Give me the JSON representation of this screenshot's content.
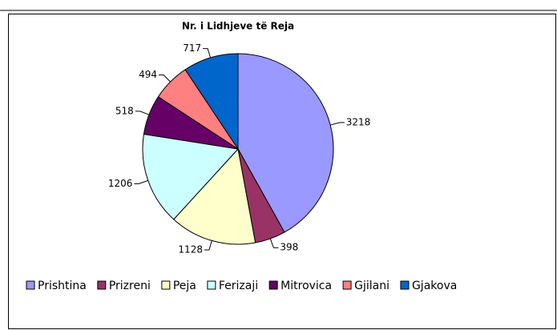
{
  "chart_data": {
    "type": "pie",
    "title": "Nr. i Lidhjeve të Reja",
    "categories": [
      "Prishtina",
      "Prizreni",
      "Peja",
      "Ferizaji",
      "Mitrovica",
      "Gjilani",
      "Gjakova"
    ],
    "values": [
      3218,
      398,
      1128,
      1206,
      518,
      494,
      717
    ],
    "colors": [
      "#9999ff",
      "#993366",
      "#ffffcc",
      "#ccffff",
      "#660066",
      "#ff8080",
      "#0066cc"
    ],
    "legend": "bottom"
  }
}
